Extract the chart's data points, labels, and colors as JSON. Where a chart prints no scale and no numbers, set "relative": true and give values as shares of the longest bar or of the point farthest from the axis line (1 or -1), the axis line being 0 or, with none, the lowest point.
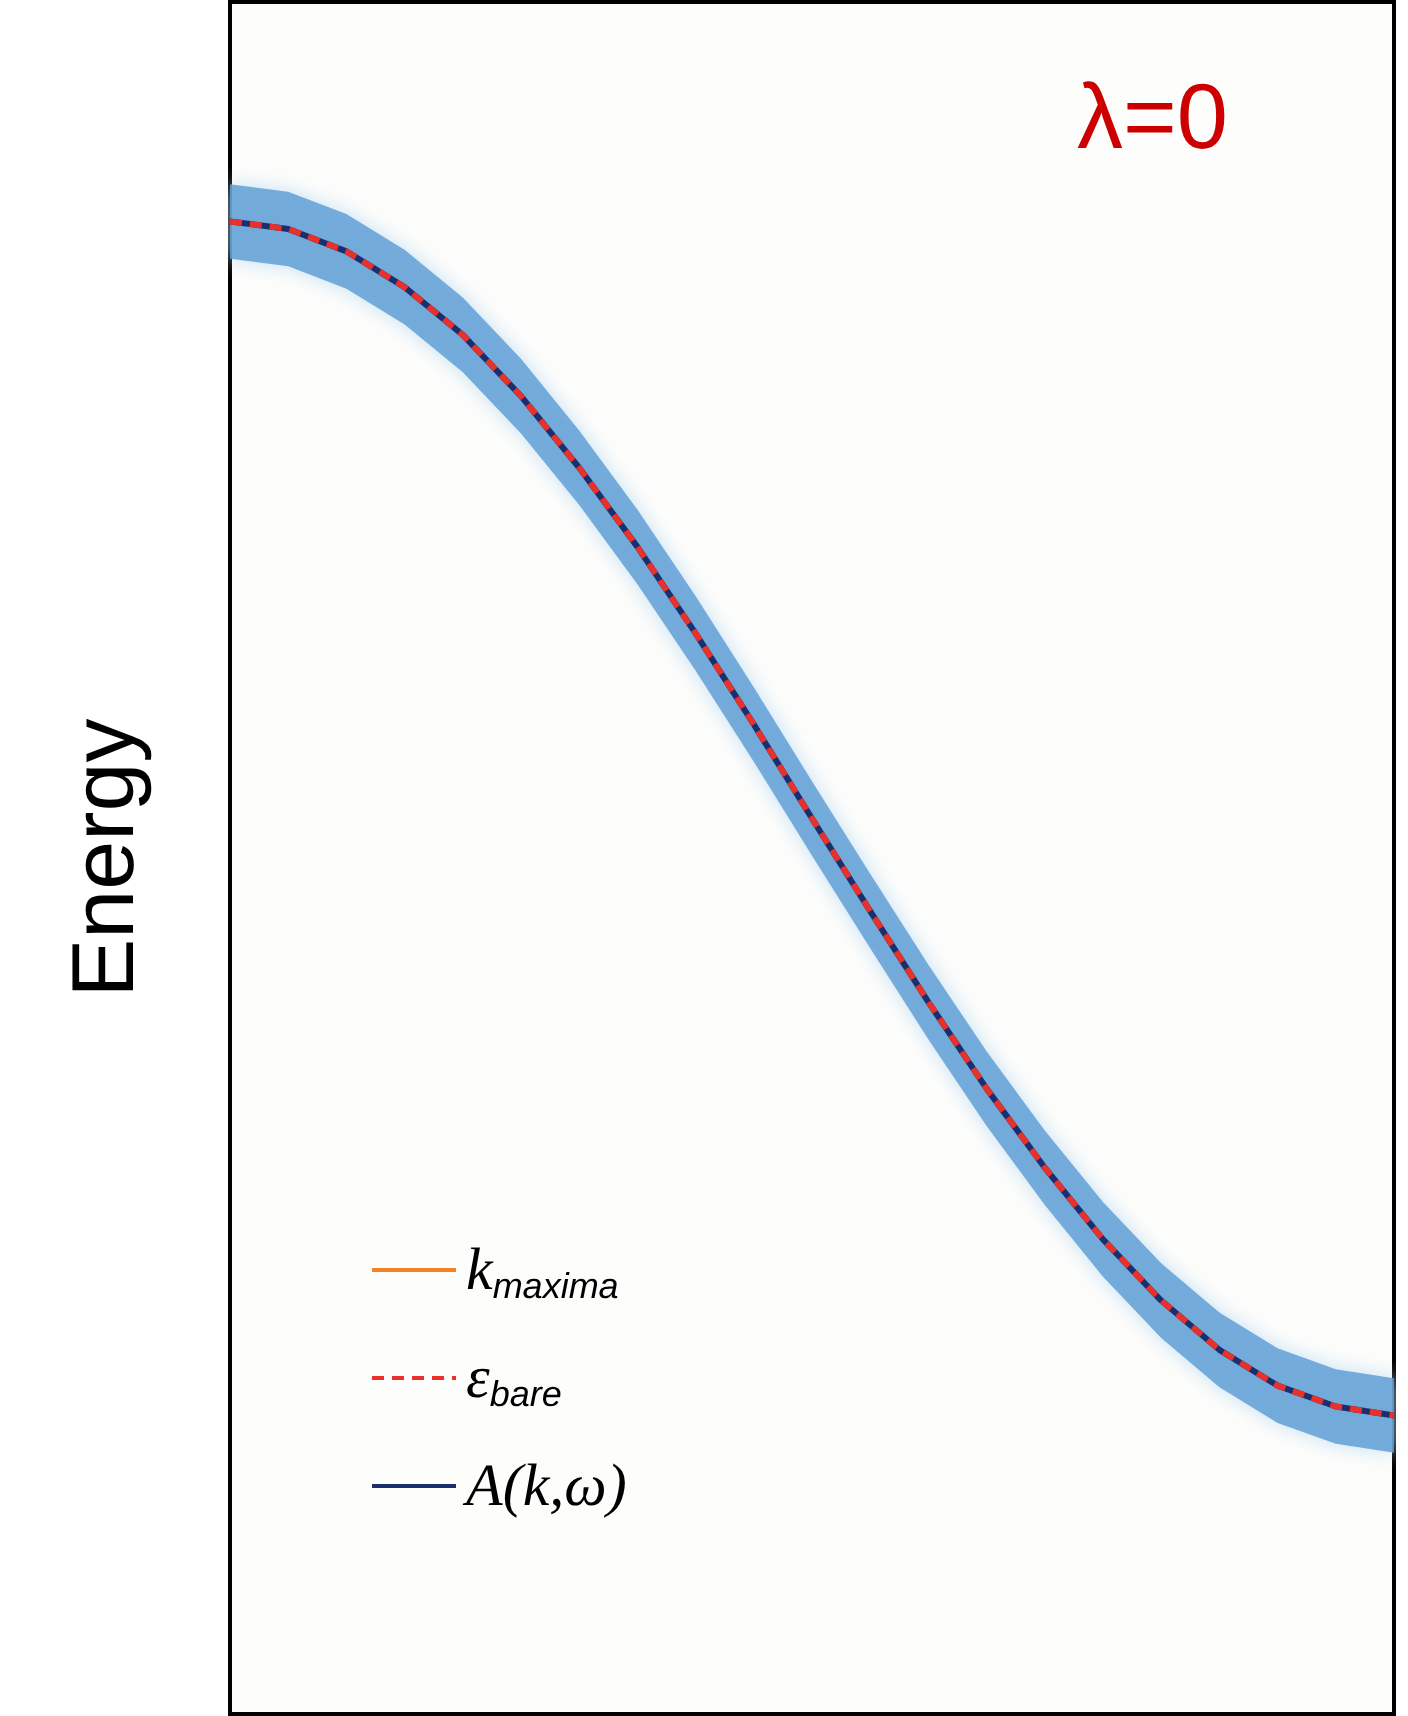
{
  "chart_data": {
    "type": "line",
    "relative": true,
    "ylabel": "Energy",
    "annotations": [
      "λ=0"
    ],
    "categories": [
      null,
      null,
      null,
      null,
      null,
      null,
      null,
      null,
      null,
      null,
      null,
      null,
      null,
      null,
      null,
      null,
      null,
      null,
      null,
      null,
      null
    ],
    "series": [
      {
        "name": "k$_{maxima}$",
        "color": "#f58220",
        "values": [
          null,
          null,
          null,
          null,
          null,
          null,
          null,
          null,
          null,
          null,
          null,
          null,
          null,
          null,
          null,
          null,
          null,
          null,
          null,
          null,
          null
        ]
      },
      {
        "name": "ε$_{bare}$",
        "color": "#e8312a",
        "line_style": "dashed",
        "values": [
          1.0,
          0.995,
          0.98,
          0.956,
          0.924,
          0.883,
          0.835,
          0.782,
          0.724,
          0.663,
          0.6,
          0.538,
          0.477,
          0.419,
          0.366,
          0.318,
          0.277,
          0.244,
          0.22,
          0.206,
          0.2
        ]
      },
      {
        "name": "A(k,ω)",
        "color": "#1b2f6e",
        "values": [
          1.0,
          0.995,
          0.98,
          0.956,
          0.924,
          0.883,
          0.835,
          0.782,
          0.724,
          0.663,
          0.6,
          0.538,
          0.477,
          0.419,
          0.366,
          0.318,
          0.277,
          0.244,
          0.22,
          0.206,
          0.2
        ],
        "lower": [
          0.975,
          0.97,
          0.955,
          0.931,
          0.899,
          0.858,
          0.81,
          0.757,
          0.699,
          0.638,
          0.575,
          0.513,
          0.452,
          0.394,
          0.341,
          0.293,
          0.252,
          0.219,
          0.195,
          0.181,
          0.175
        ],
        "upper": [
          1.025,
          1.02,
          1.005,
          0.981,
          0.949,
          0.908,
          0.86,
          0.807,
          0.749,
          0.688,
          0.625,
          0.563,
          0.502,
          0.444,
          0.391,
          0.343,
          0.302,
          0.269,
          0.245,
          0.231,
          0.225
        ]
      }
    ],
    "legend": "bottom left",
    "grid": false,
    "marker": "none"
  }
}
